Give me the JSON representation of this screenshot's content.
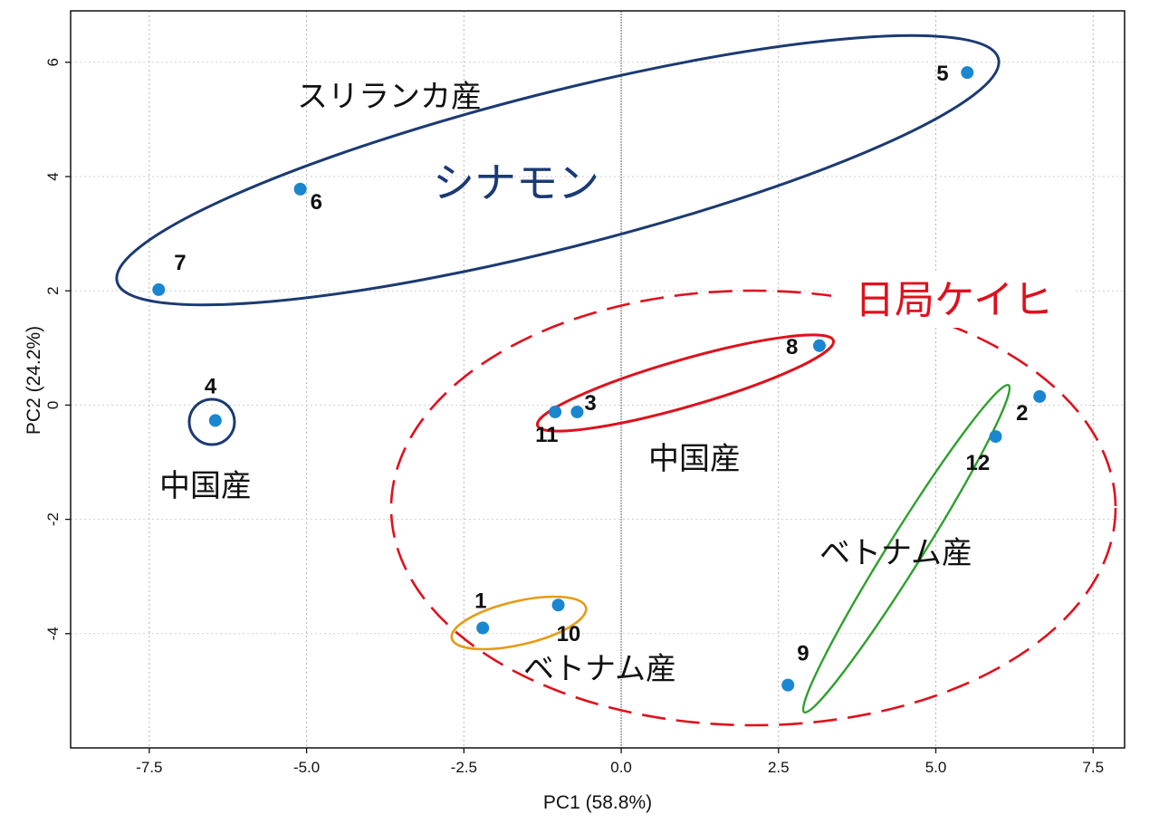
{
  "chart_data": {
    "type": "scatter",
    "xlabel": "PC1 (58.8%)",
    "ylabel": "PC2 (24.2%)",
    "xlim": [
      -8.75,
      8.0
    ],
    "ylim": [
      -6.0,
      6.9
    ],
    "xticks": [
      -7.5,
      -5.0,
      -2.5,
      0.0,
      2.5,
      5.0,
      7.5
    ],
    "xtick_labels": [
      "-7.5",
      "-5.0",
      "-2.5",
      "0.0",
      "2.5",
      "5.0",
      "7.5"
    ],
    "yticks": [
      -4,
      -2,
      0,
      2,
      4,
      6
    ],
    "ytick_labels": [
      "-4",
      "-2",
      "0",
      "2",
      "4",
      "6"
    ],
    "grid": true,
    "point_color": "#1a86d0",
    "points": [
      {
        "label": "1",
        "x": -2.2,
        "y": -3.9
      },
      {
        "label": "2",
        "x": 6.65,
        "y": 0.15
      },
      {
        "label": "3",
        "x": -0.7,
        "y": -0.12
      },
      {
        "label": "4",
        "x": -6.45,
        "y": -0.27
      },
      {
        "label": "5",
        "x": 5.5,
        "y": 5.82
      },
      {
        "label": "6",
        "x": -5.1,
        "y": 3.78
      },
      {
        "label": "7",
        "x": -7.35,
        "y": 2.02
      },
      {
        "label": "8",
        "x": 3.15,
        "y": 1.04
      },
      {
        "label": "9",
        "x": 2.65,
        "y": -4.9
      },
      {
        "label": "10",
        "x": -1.0,
        "y": -3.5
      },
      {
        "label": "11",
        "x": -1.05,
        "y": -0.12
      },
      {
        "label": "12",
        "x": 5.95,
        "y": -0.55
      }
    ],
    "annotations": {
      "cinnamon_group": "シナモン",
      "keihi_group": "日局ケイヒ",
      "sri_lanka": "スリランカ産",
      "china_left": "中国産",
      "china_center": "中国産",
      "vietnam_right": "ベトナム産",
      "vietnam_bottom": "ベトナム産"
    },
    "colors": {
      "cinnamon": "#1b3a73",
      "keihi": "#e0101c",
      "vietnam_right": "#2ca02c",
      "vietnam_bottom": "#e69a12"
    }
  }
}
